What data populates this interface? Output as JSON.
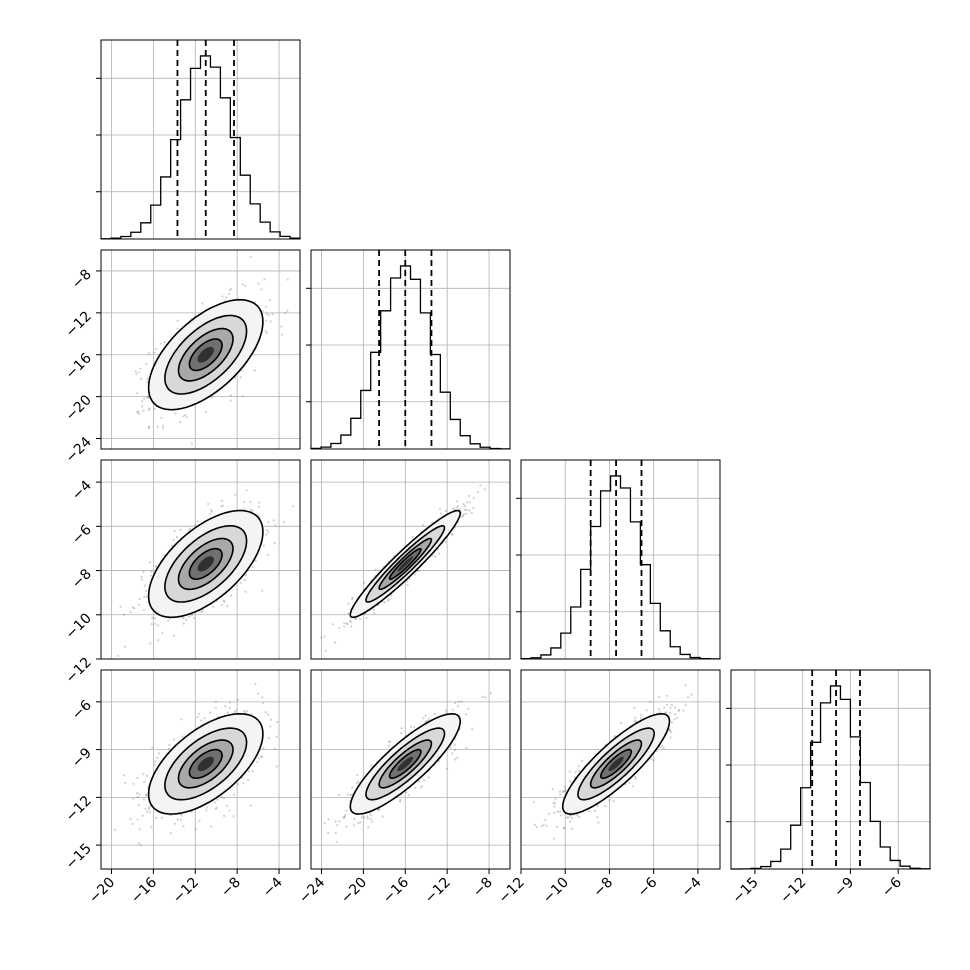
{
  "chart_data": {
    "type": "corner",
    "title": "",
    "parameters": [
      {
        "name": "",
        "range": [
          -21,
          -2
        ],
        "ticks": [
          -20,
          -16,
          -12,
          -8,
          -4
        ],
        "quantiles": [
          -13.7,
          -11.0,
          -8.3
        ],
        "mean": -11.0,
        "sd": 2.6
      },
      {
        "name": "",
        "range": [
          -25,
          -6
        ],
        "ticks": [
          -24,
          -20,
          -16,
          -12,
          -8
        ],
        "quantiles": [
          -18.5,
          -16.0,
          -13.5
        ],
        "mean": -16.0,
        "sd": 2.5
      },
      {
        "name": "",
        "range": [
          -12,
          -3
        ],
        "ticks": [
          -12,
          -10,
          -8,
          -6,
          -4
        ],
        "quantiles": [
          -8.85,
          -7.7,
          -6.55
        ],
        "mean": -7.7,
        "sd": 1.15
      },
      {
        "name": "",
        "range": [
          -16.5,
          -4
        ],
        "ticks": [
          -15,
          -12,
          -9,
          -6
        ],
        "quantiles": [
          -11.4,
          -9.9,
          -8.4
        ],
        "mean": -9.9,
        "sd": 1.5
      }
    ],
    "correlations": [
      {
        "row": 1,
        "col": 0,
        "r": 0.6
      },
      {
        "row": 2,
        "col": 0,
        "r": 0.6
      },
      {
        "row": 2,
        "col": 1,
        "r": 0.95
      },
      {
        "row": 3,
        "col": 0,
        "r": 0.6
      },
      {
        "row": 3,
        "col": 1,
        "r": 0.85
      },
      {
        "row": 3,
        "col": 2,
        "r": 0.85
      }
    ],
    "histogram_bins": 20,
    "contour_levels": [
      "0.5 sigma",
      "1 sigma",
      "1.5 sigma",
      "2 sigma"
    ],
    "grid": true,
    "legend": "none"
  }
}
